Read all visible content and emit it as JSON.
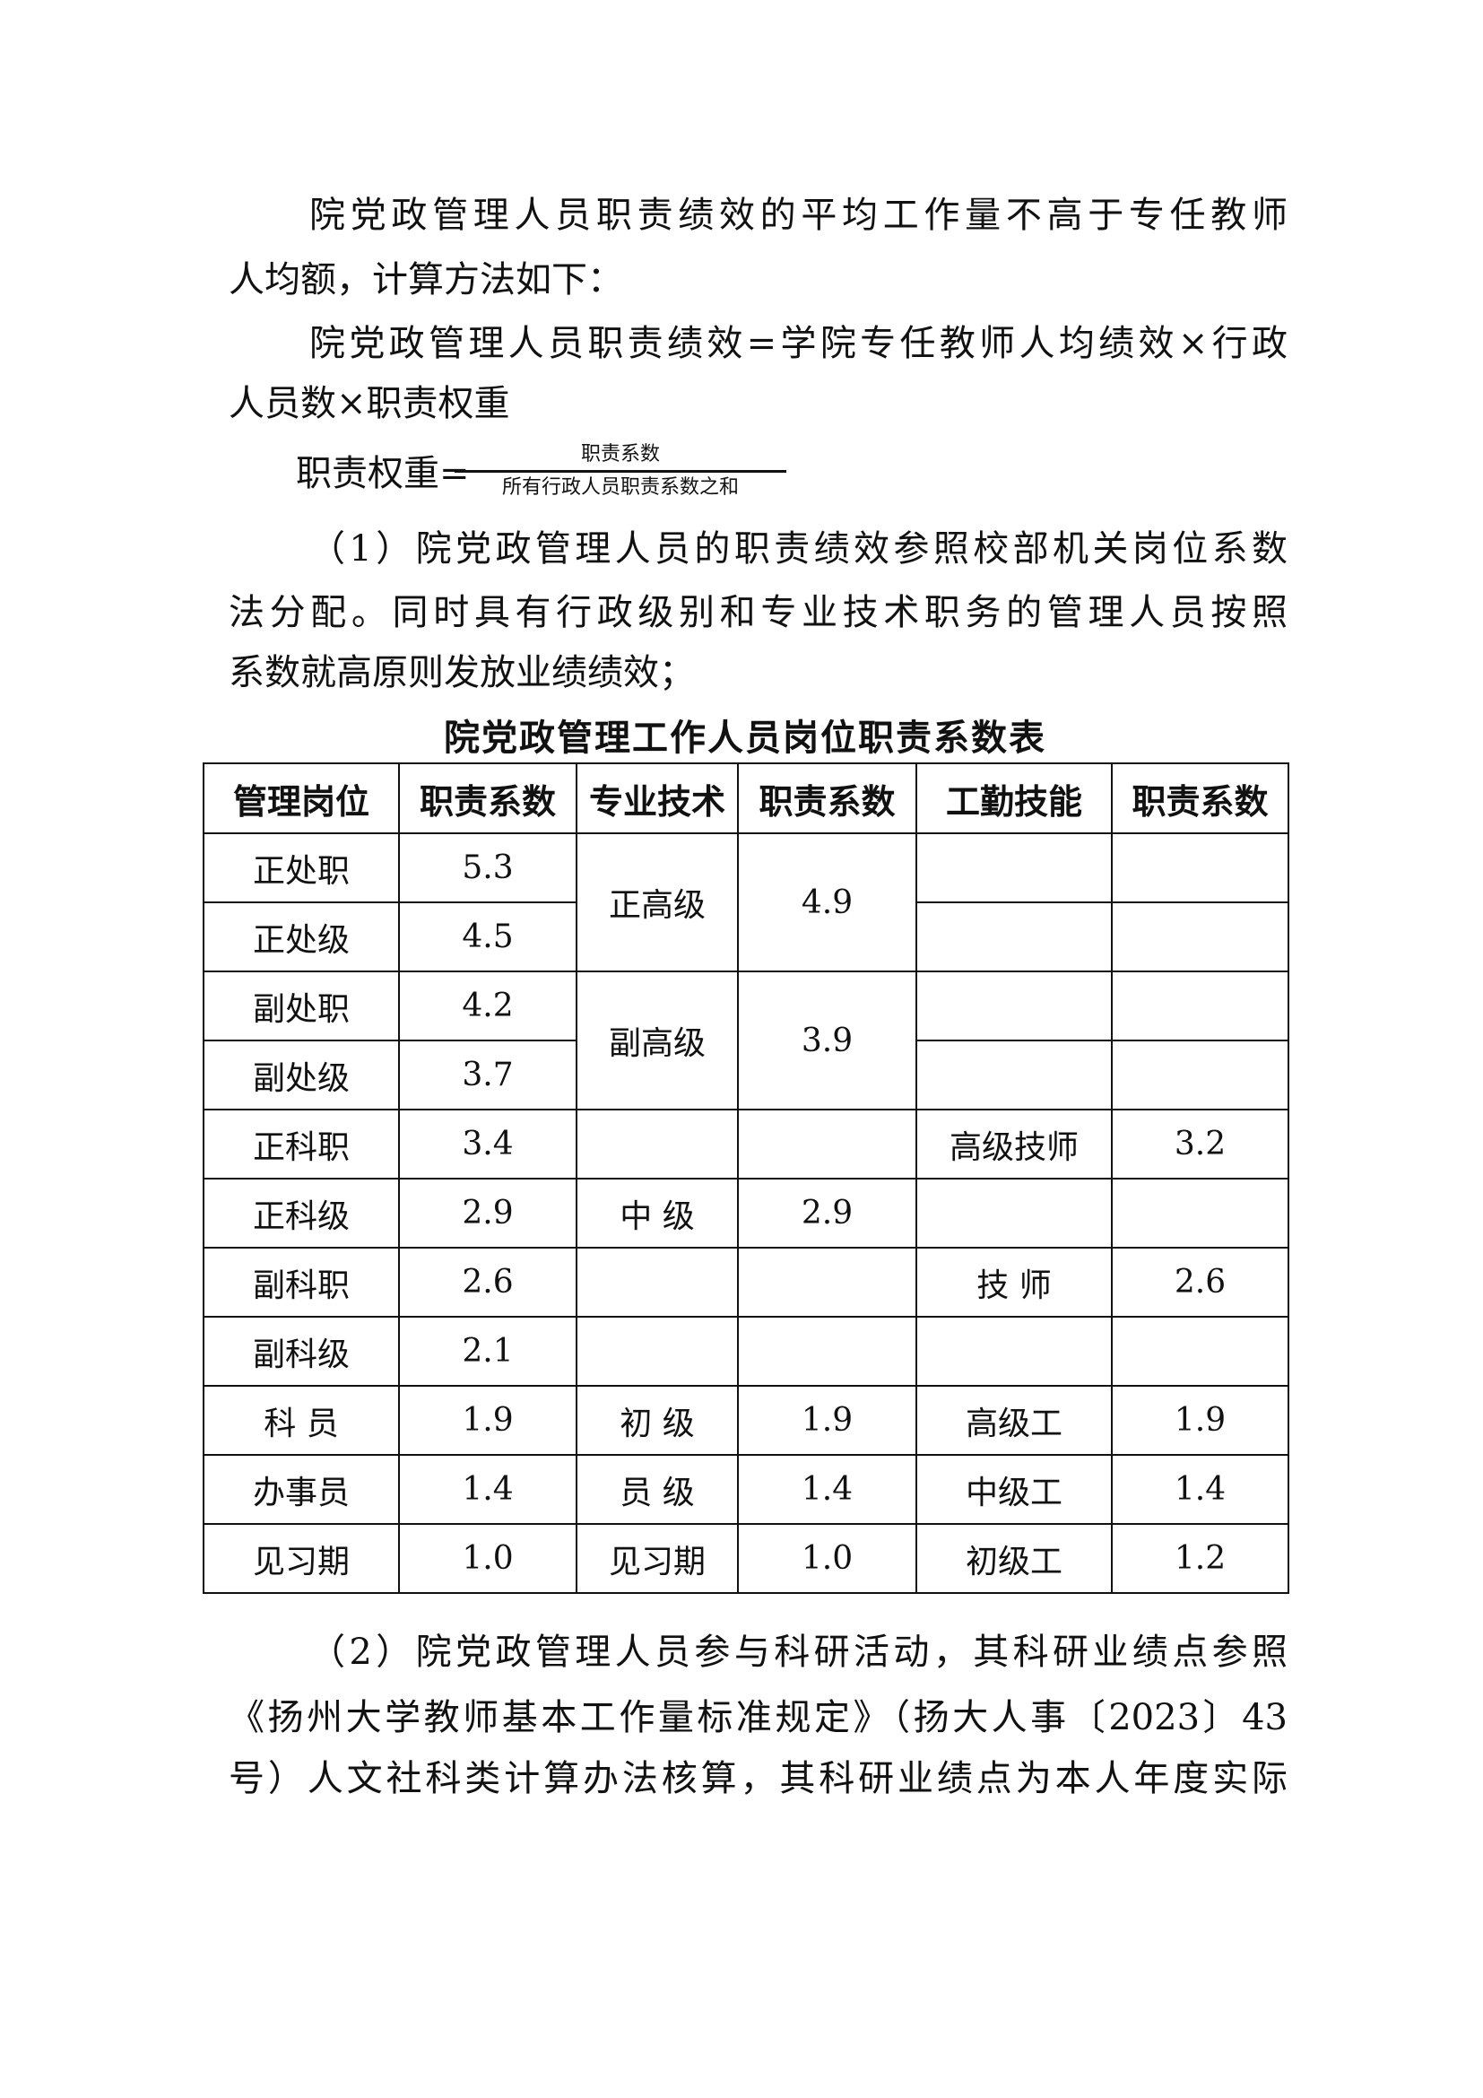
{
  "intro": {
    "lines": [
      "院党政管理人员职责绩效的平均工作量不高于专任教师",
      "人均额，计算方法如下：",
      "院党政管理人员职责绩效=学院专任教师人均绩效×行政",
      "人员数×职责权重"
    ]
  },
  "formula": {
    "label": "职责权重=",
    "numerator": "职责系数",
    "denominator": "所有行政人员职责系数之和"
  },
  "item1": {
    "lines": [
      "（1）院党政管理人员的职责绩效参照校部机关岗位系数",
      "法分配。同时具有行政级别和专业技术职务的管理人员按照",
      "系数就高原则发放业绩绩效；"
    ]
  },
  "table": {
    "title": "院党政管理工作人员岗位职责系数表",
    "headers": [
      "管理岗位",
      "职责系数",
      "专业技术",
      "职责系数",
      "工勤技能",
      "职责系数"
    ],
    "rows": [
      {
        "admin": "正处职",
        "admin_coef": "5.3",
        "tech": "正高级",
        "tech_coef": "4.9",
        "work": "",
        "work_coef": ""
      },
      {
        "admin": "正处级",
        "admin_coef": "4.5",
        "work": "",
        "work_coef": ""
      },
      {
        "admin": "副处职",
        "admin_coef": "4.2",
        "tech": "副高级",
        "tech_coef": "3.9",
        "work": "",
        "work_coef": ""
      },
      {
        "admin": "副处级",
        "admin_coef": "3.7",
        "work": "",
        "work_coef": ""
      },
      {
        "admin": "正科职",
        "admin_coef": "3.4",
        "tech": "",
        "tech_coef": "",
        "work": "高级技师",
        "work_coef": "3.2"
      },
      {
        "admin": "正科级",
        "admin_coef": "2.9",
        "tech": "中 级",
        "tech_coef": "2.9",
        "work": "",
        "work_coef": ""
      },
      {
        "admin": "副科职",
        "admin_coef": "2.6",
        "tech": "",
        "tech_coef": "",
        "work": "技 师",
        "work_coef": "2.6"
      },
      {
        "admin": "副科级",
        "admin_coef": "2.1",
        "tech": "",
        "tech_coef": "",
        "work": "",
        "work_coef": ""
      },
      {
        "admin": "科 员",
        "admin_coef": "1.9",
        "tech": "初 级",
        "tech_coef": "1.9",
        "work": "高级工",
        "work_coef": "1.9"
      },
      {
        "admin": "办事员",
        "admin_coef": "1.4",
        "tech": "员 级",
        "tech_coef": "1.4",
        "work": "中级工",
        "work_coef": "1.4"
      },
      {
        "admin": "见习期",
        "admin_coef": "1.0",
        "tech": "见习期",
        "tech_coef": "1.0",
        "work": "初级工",
        "work_coef": "1.2"
      }
    ]
  },
  "item2": {
    "lines": [
      "（2）院党政管理人员参与科研活动，其科研业绩点参照",
      "《扬州大学教师基本工作量标准规定》（扬大人事〔2023〕43",
      "号）人文社科类计算办法核算，其科研业绩点为本人年度实际"
    ]
  }
}
